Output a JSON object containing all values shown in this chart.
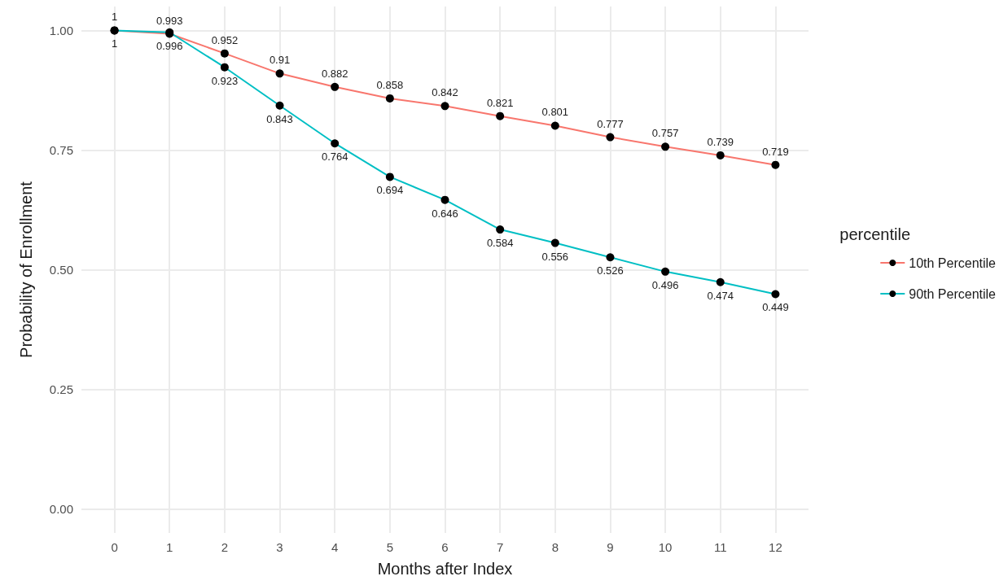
{
  "chart_data": {
    "type": "line",
    "xlabel": "Months after Index",
    "ylabel": "Probability of Enrollment",
    "legend_title": "percentile",
    "x": [
      0,
      1,
      2,
      3,
      4,
      5,
      6,
      7,
      8,
      9,
      10,
      11,
      12
    ],
    "series": [
      {
        "name": "10th Percentile",
        "color": "#f8766d",
        "values": [
          1,
          0.993,
          0.952,
          0.91,
          0.882,
          0.858,
          0.842,
          0.821,
          0.801,
          0.777,
          0.757,
          0.739,
          0.719
        ]
      },
      {
        "name": "90th Percentile",
        "color": "#00bfc4",
        "values": [
          1,
          0.996,
          0.923,
          0.843,
          0.764,
          0.694,
          0.646,
          0.584,
          0.556,
          0.526,
          0.496,
          0.474,
          0.449
        ]
      }
    ],
    "xlim": [
      -0.6,
      12.6
    ],
    "xticks": [
      0,
      1,
      2,
      3,
      4,
      5,
      6,
      7,
      8,
      9,
      10,
      11,
      12
    ],
    "ylim": [
      -0.05,
      1.05
    ],
    "yticks": [
      {
        "value": 0,
        "label": "0.00"
      },
      {
        "value": 0.25,
        "label": "0.25"
      },
      {
        "value": 0.5,
        "label": "0.50"
      },
      {
        "value": 0.75,
        "label": "0.75"
      },
      {
        "value": 1,
        "label": "1.00"
      }
    ],
    "grid": true,
    "legend": "right",
    "marker": "circle",
    "line_style": "solid",
    "data_labels": true
  }
}
